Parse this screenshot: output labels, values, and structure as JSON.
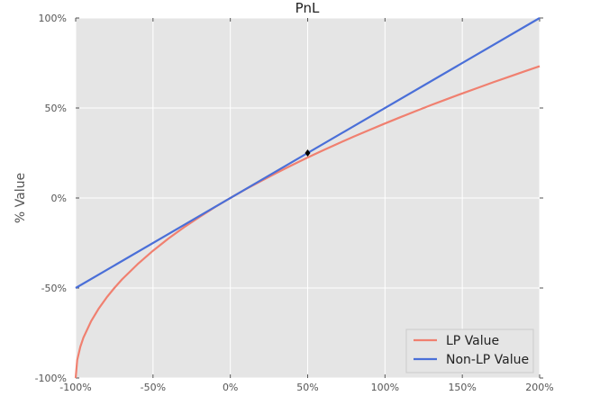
{
  "chart_data": {
    "type": "line",
    "title": "PnL",
    "xlabel": "",
    "ylabel": "% Value",
    "xlim": [
      -100,
      200
    ],
    "ylim": [
      -100,
      100
    ],
    "x_ticks": [
      -100,
      -50,
      0,
      50,
      100,
      150,
      200
    ],
    "x_tick_labels": [
      "-100%",
      "-50%",
      "0%",
      "50%",
      "100%",
      "150%",
      "200%"
    ],
    "y_ticks": [
      100,
      50,
      0,
      -50,
      -100
    ],
    "y_tick_labels": [
      "100%",
      "50%",
      "0%",
      "-50%",
      "-100%"
    ],
    "grid": true,
    "legend_position": "lower-right",
    "background_color": "#e5e5e5",
    "series": [
      {
        "name": "LP Value",
        "color": "#f08070",
        "x": [
          -100,
          -99,
          -97,
          -95,
          -90,
          -85,
          -80,
          -75,
          -70,
          -60,
          -50,
          -40,
          -30,
          -20,
          -10,
          0,
          10,
          20,
          30,
          40,
          50,
          60,
          70,
          80,
          90,
          100,
          110,
          120,
          130,
          140,
          150,
          160,
          170,
          180,
          190,
          200
        ],
        "y": [
          -100,
          -90.0,
          -82.7,
          -77.6,
          -68.4,
          -61.3,
          -55.3,
          -50.0,
          -45.2,
          -36.8,
          -29.3,
          -22.5,
          -16.3,
          -10.6,
          -5.1,
          0,
          4.9,
          9.5,
          14.0,
          18.3,
          22.5,
          26.5,
          30.4,
          34.2,
          37.8,
          41.4,
          44.9,
          48.3,
          51.7,
          54.9,
          58.1,
          61.2,
          64.3,
          67.3,
          70.3,
          73.2
        ]
      },
      {
        "name": "Non-LP Value",
        "color": "#4a6fd8",
        "x": [
          -100,
          200
        ],
        "y": [
          -50,
          100
        ]
      }
    ],
    "annotations": [
      {
        "x": 50,
        "y": 25
      }
    ]
  }
}
